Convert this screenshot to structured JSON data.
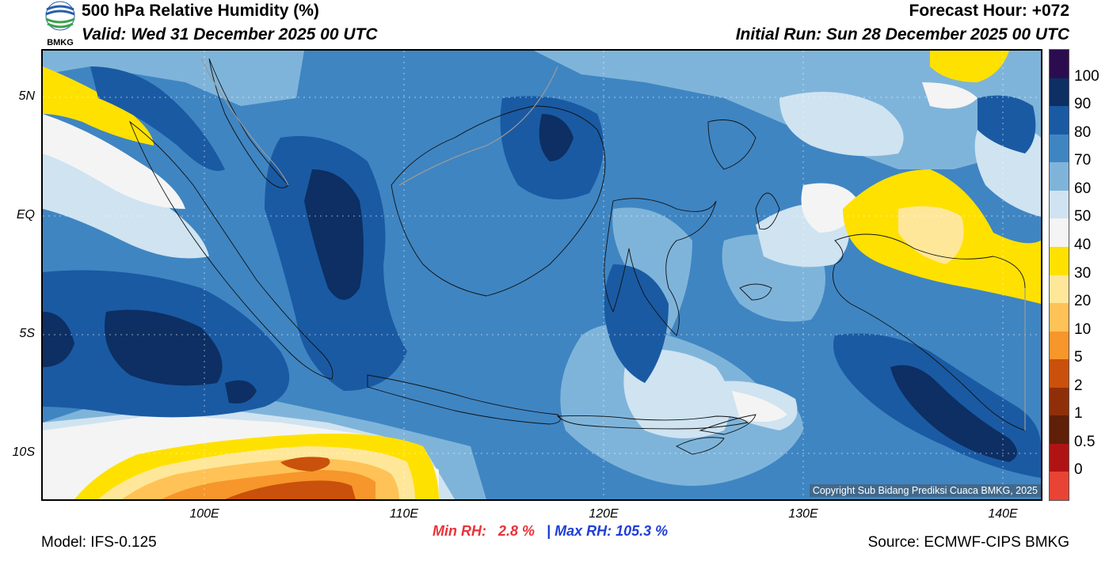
{
  "header": {
    "title": "500 hPa Relative Humidity (%)",
    "valid": "Valid: Wed 31 December 2025 00 UTC",
    "forecast_hour": "Forecast Hour: +072",
    "initial_run": "Initial Run: Sun 28 December 2025 00 UTC",
    "logo_text": "BMKG"
  },
  "map": {
    "lat_labels": [
      "5N",
      "EQ",
      "5S",
      "10S"
    ],
    "lon_labels": [
      "100E",
      "110E",
      "120E",
      "130E",
      "140E"
    ],
    "copyright": "Copyright Sub Bidang Prediksi Cuaca BMKG, 2025"
  },
  "stats": {
    "min_label": "Min RH:",
    "min_value": "2.8 %",
    "separator": "|",
    "max_label": "Max RH:",
    "max_value": "105.3 %"
  },
  "footer": {
    "model": "Model: IFS-0.125",
    "source": "Source: ECMWF-CIPS BMKG"
  },
  "colorbar": {
    "labels": [
      "100",
      "90",
      "80",
      "70",
      "60",
      "50",
      "40",
      "30",
      "20",
      "10",
      "5",
      "2",
      "1",
      "0.5",
      "0"
    ],
    "colors": [
      "#2b0d4f",
      "#0d2f63",
      "#1a5aa3",
      "#3f85c2",
      "#7fb4da",
      "#cfe3f1",
      "#f4f4f4",
      "#ffe100",
      "#ffe79a",
      "#ffc256",
      "#f7962a",
      "#c9510c",
      "#8f2f0a",
      "#5f1f09",
      "#b01313",
      "#e84335"
    ]
  },
  "colors": {
    "rh_95": "#0d2f63",
    "rh_85": "#1a5aa3",
    "rh_75": "#3f85c2",
    "rh_65": "#7fb4da",
    "rh_55": "#cfe3f1",
    "rh_45": "#f4f4f4",
    "rh_35": "#ffe100",
    "rh_25": "#ffe79a",
    "rh_15": "#ffc256",
    "rh_7": "#f7962a",
    "rh_3": "#c9510c"
  }
}
